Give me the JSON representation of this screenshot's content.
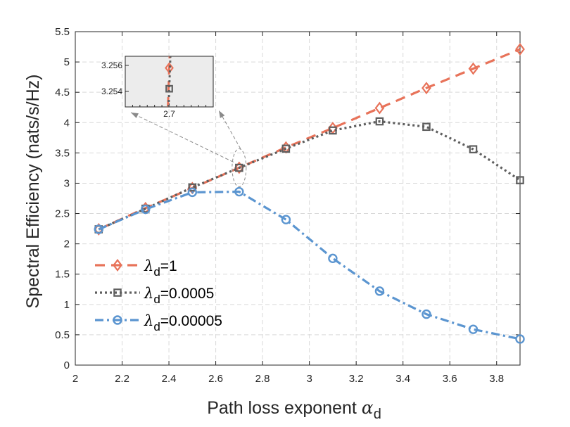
{
  "chart_data": {
    "type": "line",
    "title": "",
    "xlabel": "Path loss exponent",
    "xlabel_symbol": "α",
    "xlabel_sub": "d",
    "ylabel": "Spectral Efficiency (nats/s/Hz)",
    "xlim": [
      2,
      3.9
    ],
    "ylim": [
      0,
      5.5
    ],
    "xticks": [
      "2",
      "2.2",
      "2.4",
      "2.6",
      "2.8",
      "3",
      "3.2",
      "3.4",
      "3.6",
      "3.8"
    ],
    "yticks": [
      "0",
      "0.5",
      "1",
      "1.5",
      "2",
      "2.5",
      "3",
      "3.5",
      "4",
      "4.5",
      "5",
      "5.5"
    ],
    "grid": true,
    "legend_position": "lower-left",
    "x": [
      2.1,
      2.3,
      2.5,
      2.7,
      2.9,
      3.1,
      3.3,
      3.5,
      3.7,
      3.9
    ],
    "series": [
      {
        "name": "λd=1",
        "legend_symbol": "λ",
        "legend_sub": "d",
        "legend_value": "=1",
        "color": "#E8735A",
        "marker": "diamond",
        "line": "dashed",
        "values": [
          2.24,
          2.59,
          2.92,
          3.256,
          3.59,
          3.91,
          4.24,
          4.57,
          4.89,
          5.21
        ]
      },
      {
        "name": "λd=0.0005",
        "legend_symbol": "λ",
        "legend_sub": "d",
        "legend_value": "=0.0005",
        "color": "#5E5E5E",
        "marker": "square",
        "line": "dotted",
        "values": [
          2.24,
          2.58,
          2.93,
          3.254,
          3.57,
          3.87,
          4.02,
          3.93,
          3.56,
          3.05
        ]
      },
      {
        "name": "λd=0.00005",
        "legend_symbol": "λ",
        "legend_sub": "d",
        "legend_value": "=0.00005",
        "color": "#5B95D0",
        "marker": "circle",
        "line": "dashdot",
        "values": [
          2.24,
          2.57,
          2.85,
          2.86,
          2.4,
          1.76,
          1.22,
          0.84,
          0.59,
          0.43
        ]
      }
    ],
    "inset": {
      "xlim": [
        2.64,
        2.76
      ],
      "ylim": [
        3.2528,
        3.2567
      ],
      "xticks": [
        "2.7"
      ],
      "yticks": [
        "3.254",
        "3.256"
      ],
      "x": 2.7,
      "values": [
        3.2558,
        3.2542
      ]
    }
  }
}
